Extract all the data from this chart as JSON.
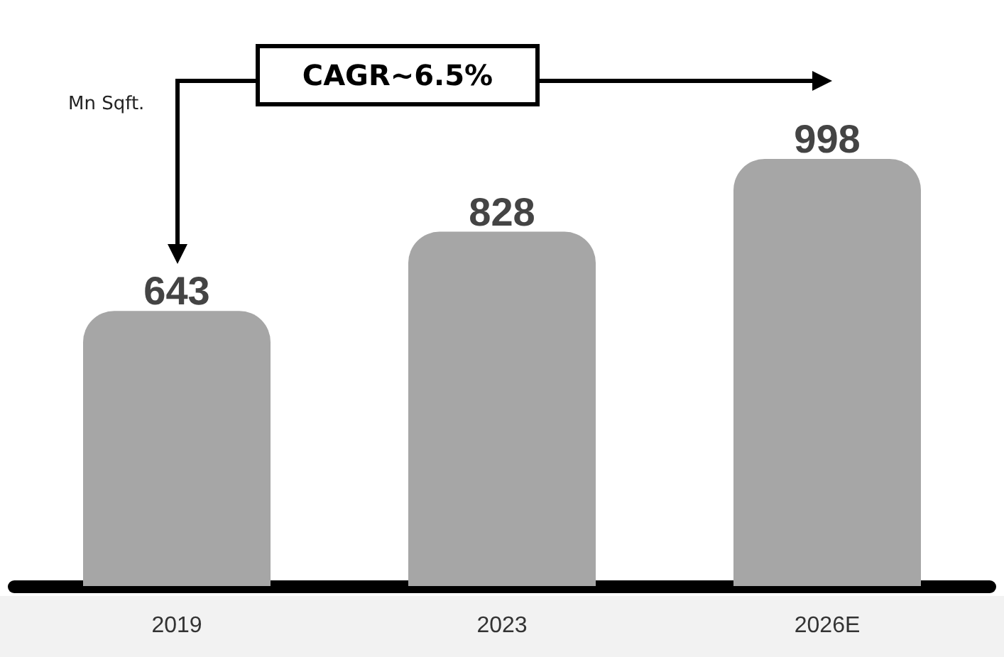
{
  "chart_data": {
    "type": "bar",
    "ylabel": "Mn Sqft.",
    "categories": [
      "2019",
      "2023",
      "2026E"
    ],
    "values": [
      643,
      828,
      998
    ],
    "color": "#a6a6a6",
    "data_labels": true,
    "annotations": [
      "CAGR~6.5%"
    ]
  }
}
